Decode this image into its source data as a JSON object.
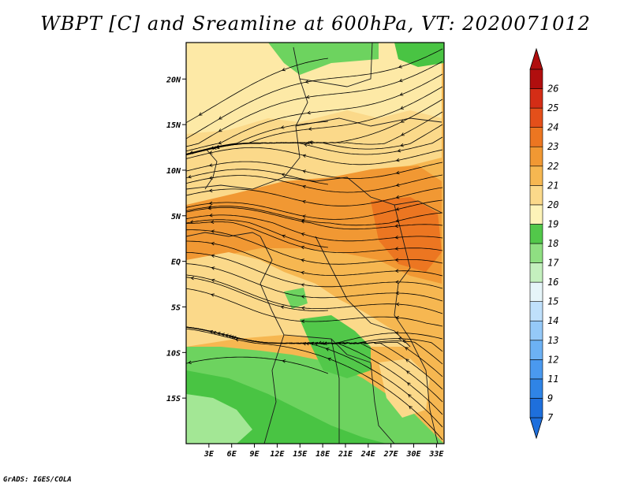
{
  "title": "WBPT [C] and Sreamline at 600hPa, VT: 2020071012",
  "credit": "GrADS: IGES/COLA",
  "map": {
    "lon_range": [
      0,
      34
    ],
    "lat_range": [
      -20,
      24
    ],
    "lat_ticks": [
      {
        "value": 20,
        "label": "20N"
      },
      {
        "value": 15,
        "label": "15N"
      },
      {
        "value": 10,
        "label": "10N"
      },
      {
        "value": 5,
        "label": "5N"
      },
      {
        "value": 0,
        "label": "EQ"
      },
      {
        "value": -5,
        "label": "5S"
      },
      {
        "value": -10,
        "label": "10S"
      },
      {
        "value": -15,
        "label": "15S"
      }
    ],
    "lon_ticks": [
      {
        "value": 3,
        "label": "3E"
      },
      {
        "value": 6,
        "label": "6E"
      },
      {
        "value": 9,
        "label": "9E"
      },
      {
        "value": 12,
        "label": "12E"
      },
      {
        "value": 15,
        "label": "15E"
      },
      {
        "value": 18,
        "label": "18E"
      },
      {
        "value": 21,
        "label": "21E"
      },
      {
        "value": 24,
        "label": "24E"
      },
      {
        "value": 27,
        "label": "27E"
      },
      {
        "value": 30,
        "label": "30E"
      },
      {
        "value": 33,
        "label": "33E"
      }
    ]
  },
  "colorbar": {
    "labels": [
      "7",
      "9",
      "11",
      "12",
      "13",
      "14",
      "15",
      "16",
      "17",
      "18",
      "19",
      "20",
      "21",
      "22",
      "23",
      "24",
      "25",
      "26"
    ],
    "colors": [
      "#1e6fdc",
      "#2f84e6",
      "#4a99ef",
      "#6cb1f4",
      "#95c9f8",
      "#bfe0fb",
      "#e6f5f9",
      "#c4f0be",
      "#8fdf82",
      "#52c84a",
      "#fdf3b8",
      "#fbd98a",
      "#f6b751",
      "#f19833",
      "#ec7621",
      "#e44f1a",
      "#d42d16",
      "#b00e0e"
    ]
  },
  "colors": {
    "green_dark": "#49c443",
    "green_mid": "#6dd35f",
    "green_light": "#a3e795",
    "yellow_pale": "#fde9a6",
    "yellow": "#fbd98a",
    "orange_light": "#f6b751",
    "orange": "#f19833",
    "orange_dark": "#ec7621"
  }
}
